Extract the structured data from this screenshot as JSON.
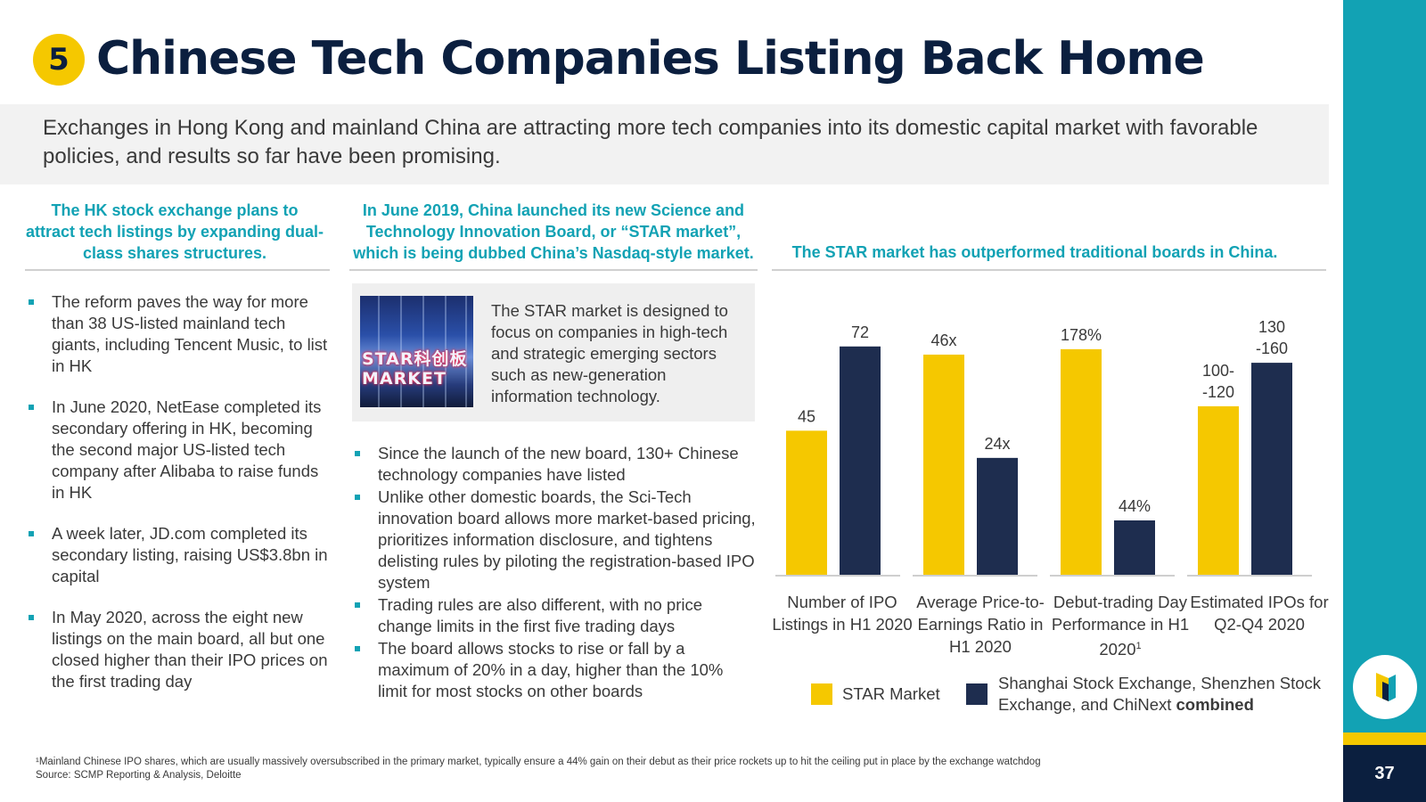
{
  "header": {
    "badge": "5",
    "title": "Chinese Tech Companies Listing Back Home",
    "subtitle": "Exchanges in Hong Kong and mainland China are attracting more tech companies into its domestic capital market with favorable policies, and results so far have been promising."
  },
  "left_column": {
    "heading": "The HK stock exchange plans to attract tech listings by expanding dual-class shares structures.",
    "bullets": [
      "The reform paves the way for more than 38 US-listed mainland tech giants, including Tencent Music, to list in HK",
      "In June 2020, NetEase completed its secondary offering in HK, becoming the second major US-listed tech company after Alibaba to raise funds in HK",
      "A week later, JD.com completed its secondary listing, raising US$3.8bn in capital",
      "In May 2020, across the eight new listings on the main board, all but one closed higher than their IPO prices on the first trading day"
    ]
  },
  "middle_column": {
    "heading": "In June 2019, China launched its new Science and Technology Innovation Board, or “STAR market”, which is being dubbed China’s Nasdaq-style market.",
    "image_text": "STAR科创板 MARKET",
    "info_text": "The STAR market is designed to focus on companies in high-tech and strategic emerging sectors such as new-generation information technology.",
    "bullets": [
      "Since the launch of the new board, 130+ Chinese technology companies have listed",
      "Unlike other domestic boards, the Sci-Tech innovation board allows more market-based pricing, prioritizes information disclosure, and tightens delisting rules by piloting the registration-based IPO system",
      "Trading rules are also different, with no price change limits in the first five trading days",
      "The board allows stocks to rise or fall by a maximum of 20% in a day, higher than the 10% limit for most stocks on other boards"
    ]
  },
  "chart_data": {
    "type": "bar",
    "title": "The STAR market has outperformed traditional boards in China.",
    "categories": [
      "Number of IPO Listings in H1 2020",
      "Average Price-to-Earnings Ratio in H1 2020",
      "Debut-trading Day Performance in H1 2020",
      "Estimated IPOs for Q2-Q4 2020"
    ],
    "category_superscripts": [
      "",
      "",
      "1",
      ""
    ],
    "series": [
      {
        "name": "STAR Market",
        "color": "#f5c800",
        "labels": [
          "45",
          "46x",
          "178%",
          "100- -120"
        ]
      },
      {
        "name": "Shanghai Stock Exchange, Shenzhen Stock Exchange, and ChiNext combined",
        "color": "#1e2d4f",
        "labels": [
          "72",
          "24x",
          "44%",
          "130 -160"
        ]
      }
    ],
    "values_relative_in_group": [
      [
        0.53,
        0.84
      ],
      [
        0.81,
        0.43
      ],
      [
        0.83,
        0.2
      ],
      [
        0.62,
        0.78
      ]
    ],
    "legend": {
      "star": "STAR Market",
      "combined": "Shanghai Stock Exchange, Shenzhen Stock Exchange, and ChiNext",
      "combined_bold": "combined"
    },
    "grid": false,
    "legend_position": "bottom"
  },
  "footnote": {
    "line1": "¹Mainland Chinese IPO shares, which are usually massively oversubscribed in the primary market, typically ensure a 44% gain on their debut as their price rockets up to hit the ceiling put in place by the exchange watchdog",
    "line2": "Source: SCMP Reporting & Analysis, Deloitte"
  },
  "page": {
    "number": "37"
  },
  "colors": {
    "accent": "#12a2b4",
    "yellow": "#f5c800",
    "navy": "#0b1f3f"
  }
}
